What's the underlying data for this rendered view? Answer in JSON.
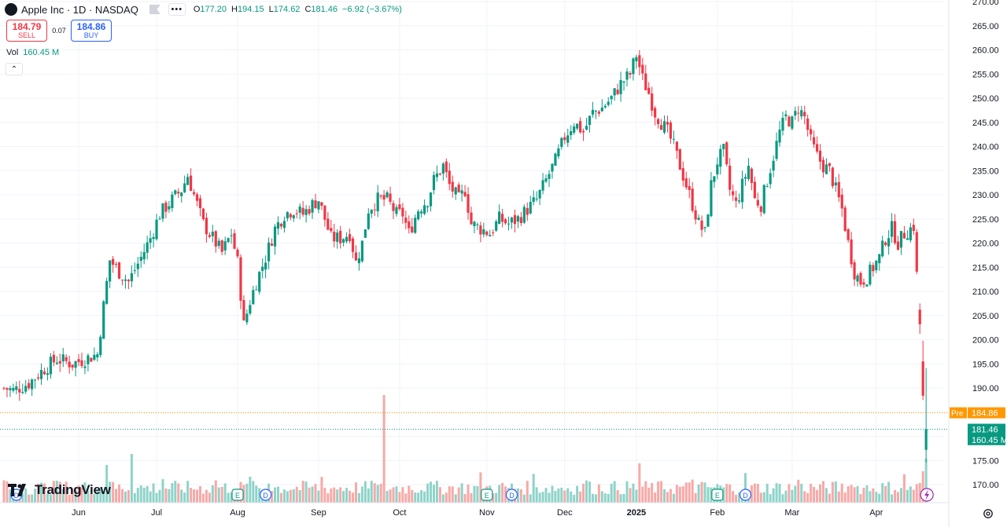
{
  "header": {
    "symbol_logo": "",
    "symbol_title": "Apple Inc · 1D · NASDAQ",
    "flag_icon": "flag-icon",
    "more_label": "•••",
    "ohlc": [
      {
        "key": "O",
        "value": "177.20"
      },
      {
        "key": "H",
        "value": "194.15"
      },
      {
        "key": "L",
        "value": "174.62"
      },
      {
        "key": "C",
        "value": "181.46"
      },
      {
        "key": "",
        "value": "−6.92 (−3.67%)"
      }
    ]
  },
  "trade": {
    "sell_price": "184.79",
    "sell_label": "SELL",
    "spread": "0.07",
    "buy_price": "184.86",
    "buy_label": "BUY"
  },
  "volume_legend": {
    "label": "Vol",
    "value": "160.45 M"
  },
  "collapse_label": "⌃",
  "brand": {
    "name": "TradingView"
  },
  "colors": {
    "up": "#089981",
    "down": "#f23645",
    "vol_up": "#8fd3c9",
    "vol_down": "#f7a9a7",
    "grid": "#f0f3fa",
    "pre": "#ff9800",
    "last": "#089981",
    "axis_text": "#131722"
  },
  "chart_data": {
    "type": "candlestick",
    "symbol": "Apple Inc",
    "interval": "1D",
    "exchange": "NASDAQ",
    "y_axis_ticks": [
      170,
      175,
      180,
      185,
      190,
      195,
      200,
      205,
      210,
      215,
      220,
      225,
      230,
      235,
      240,
      245,
      250,
      255,
      260,
      265,
      270
    ],
    "ylim": [
      167,
      270
    ],
    "x_axis_labels": [
      {
        "label": "Jun",
        "index": 24
      },
      {
        "label": "Jul",
        "index": 49
      },
      {
        "label": "Aug",
        "index": 75
      },
      {
        "label": "Sep",
        "index": 101
      },
      {
        "label": "Oct",
        "index": 127
      },
      {
        "label": "Nov",
        "index": 155
      },
      {
        "label": "Dec",
        "index": 180
      },
      {
        "label": "2025",
        "index": 203
      },
      {
        "label": "Feb",
        "index": 229
      },
      {
        "label": "Mar",
        "index": 253
      },
      {
        "label": "Apr",
        "index": 280
      }
    ],
    "price_labels": [
      {
        "text": "Pre",
        "value": "184.86",
        "price": 184.86,
        "color": "#ff9800"
      },
      {
        "text": "",
        "value": "181.46",
        "price": 181.46,
        "color": "#089981"
      },
      {
        "text": "",
        "value": "160.45 M",
        "price": 179.3,
        "color": "#089981"
      }
    ],
    "events": [
      {
        "letter": "E",
        "index": 75,
        "kind": "earnings"
      },
      {
        "letter": "D",
        "index": 84,
        "kind": "dividend"
      },
      {
        "letter": "E",
        "index": 155,
        "kind": "earnings"
      },
      {
        "letter": "D",
        "index": 163,
        "kind": "dividend"
      },
      {
        "letter": "E",
        "index": 229,
        "kind": "earnings"
      },
      {
        "letter": "D",
        "index": 238,
        "kind": "dividend"
      },
      {
        "letter": "D",
        "index": 4,
        "kind": "dividend"
      }
    ],
    "close_anchors": [
      [
        0,
        190
      ],
      [
        3,
        189.5
      ],
      [
        8,
        191
      ],
      [
        13,
        194
      ],
      [
        17,
        196
      ],
      [
        22,
        195
      ],
      [
        26,
        196
      ],
      [
        30,
        197
      ],
      [
        32,
        207
      ],
      [
        34,
        216.5
      ],
      [
        37,
        214
      ],
      [
        40,
        212
      ],
      [
        44,
        217
      ],
      [
        47,
        221
      ],
      [
        50,
        226
      ],
      [
        54,
        229
      ],
      [
        57,
        231
      ],
      [
        59,
        234
      ],
      [
        61,
        230
      ],
      [
        64,
        224
      ],
      [
        67,
        221
      ],
      [
        70,
        218
      ],
      [
        73,
        222
      ],
      [
        75,
        216
      ],
      [
        77,
        203
      ],
      [
        79,
        208
      ],
      [
        81,
        212
      ],
      [
        84,
        217
      ],
      [
        87,
        223
      ],
      [
        90,
        226
      ],
      [
        93,
        227
      ],
      [
        96,
        226
      ],
      [
        99,
        228
      ],
      [
        101,
        229
      ],
      [
        103,
        225
      ],
      [
        105,
        221
      ],
      [
        108,
        221
      ],
      [
        111,
        222
      ],
      [
        113,
        216
      ],
      [
        115,
        220
      ],
      [
        117,
        227
      ],
      [
        120,
        229
      ],
      [
        123,
        229
      ],
      [
        126,
        226
      ],
      [
        128,
        226
      ],
      [
        130,
        222
      ],
      [
        133,
        227
      ],
      [
        136,
        229
      ],
      [
        138,
        233
      ],
      [
        141,
        236
      ],
      [
        143,
        232
      ],
      [
        146,
        229
      ],
      [
        148,
        231
      ],
      [
        150,
        224
      ],
      [
        153,
        223
      ],
      [
        156,
        222
      ],
      [
        159,
        225
      ],
      [
        162,
        224
      ],
      [
        165,
        225
      ],
      [
        168,
        227
      ],
      [
        171,
        229
      ],
      [
        174,
        233
      ],
      [
        177,
        237
      ],
      [
        180,
        242
      ],
      [
        183,
        245
      ],
      [
        186,
        243
      ],
      [
        189,
        247
      ],
      [
        192,
        248
      ],
      [
        195,
        250
      ],
      [
        198,
        253
      ],
      [
        201,
        255
      ],
      [
        203,
        259
      ],
      [
        205,
        254
      ],
      [
        207,
        251
      ],
      [
        209,
        247
      ],
      [
        211,
        245
      ],
      [
        213,
        243
      ],
      [
        215,
        240
      ],
      [
        217,
        236
      ],
      [
        219,
        232
      ],
      [
        221,
        228
      ],
      [
        223,
        224
      ],
      [
        225,
        222
      ],
      [
        227,
        232
      ],
      [
        229,
        237
      ],
      [
        231,
        239
      ],
      [
        233,
        231
      ],
      [
        235,
        228
      ],
      [
        237,
        232
      ],
      [
        239,
        236
      ],
      [
        241,
        229
      ],
      [
        243,
        228
      ],
      [
        245,
        233
      ],
      [
        247,
        238
      ],
      [
        249,
        243
      ],
      [
        251,
        246
      ],
      [
        253,
        245
      ],
      [
        255,
        248
      ],
      [
        257,
        246
      ],
      [
        259,
        241
      ],
      [
        261,
        238
      ],
      [
        263,
        236
      ],
      [
        265,
        235
      ],
      [
        267,
        231
      ],
      [
        269,
        227
      ],
      [
        271,
        220
      ],
      [
        273,
        214
      ],
      [
        275,
        212
      ],
      [
        277,
        213
      ],
      [
        279,
        215
      ],
      [
        281,
        217
      ],
      [
        283,
        221
      ],
      [
        285,
        223
      ],
      [
        287,
        220
      ],
      [
        289,
        222
      ],
      [
        291,
        223
      ],
      [
        292,
        223.5
      ],
      [
        294,
        203.2
      ],
      [
        295,
        189.2
      ],
      [
        296,
        181.46
      ]
    ],
    "volume_axis_note": "",
    "last": {
      "open": 177.2,
      "high": 194.15,
      "low": 174.62,
      "close": 181.46,
      "change": -6.92,
      "change_pct": -3.67,
      "volume": "160.45 M"
    }
  }
}
